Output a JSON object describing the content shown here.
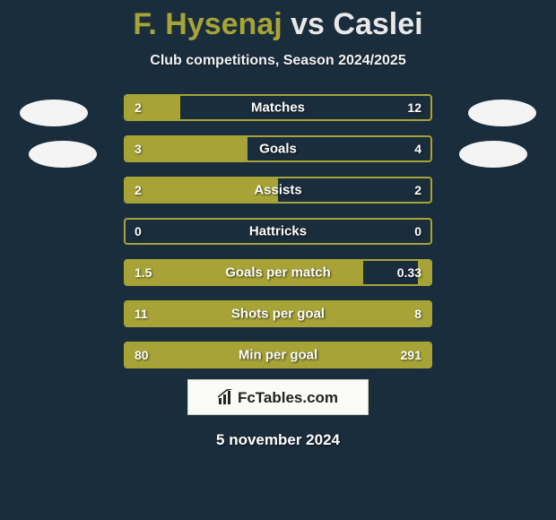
{
  "title": {
    "player1": "F. Hysenaj",
    "vs": "vs",
    "player2": "Caslei",
    "player1_color": "#a7a337",
    "player2_color": "#e8e8e8"
  },
  "subtitle": "Club competitions, Season 2024/2025",
  "brand_text": "FcTables.com",
  "date": "5 november 2024",
  "bar_color": "#a7a337",
  "background_color": "#1a2d3d",
  "rows": [
    {
      "label": "Matches",
      "left_val": "2",
      "right_val": "12",
      "left_pct": 18,
      "right_pct": 0
    },
    {
      "label": "Goals",
      "left_val": "3",
      "right_val": "4",
      "left_pct": 40,
      "right_pct": 0
    },
    {
      "label": "Assists",
      "left_val": "2",
      "right_val": "2",
      "left_pct": 50,
      "right_pct": 0
    },
    {
      "label": "Hattricks",
      "left_val": "0",
      "right_val": "0",
      "left_pct": 0,
      "right_pct": 0
    },
    {
      "label": "Goals per match",
      "left_val": "1.5",
      "right_val": "0.33",
      "left_pct": 78,
      "right_pct": 4
    },
    {
      "label": "Shots per goal",
      "left_val": "11",
      "right_val": "8",
      "left_pct": 100,
      "right_pct": 0
    },
    {
      "label": "Min per goal",
      "left_val": "80",
      "right_val": "291",
      "left_pct": 100,
      "right_pct": 0
    }
  ]
}
